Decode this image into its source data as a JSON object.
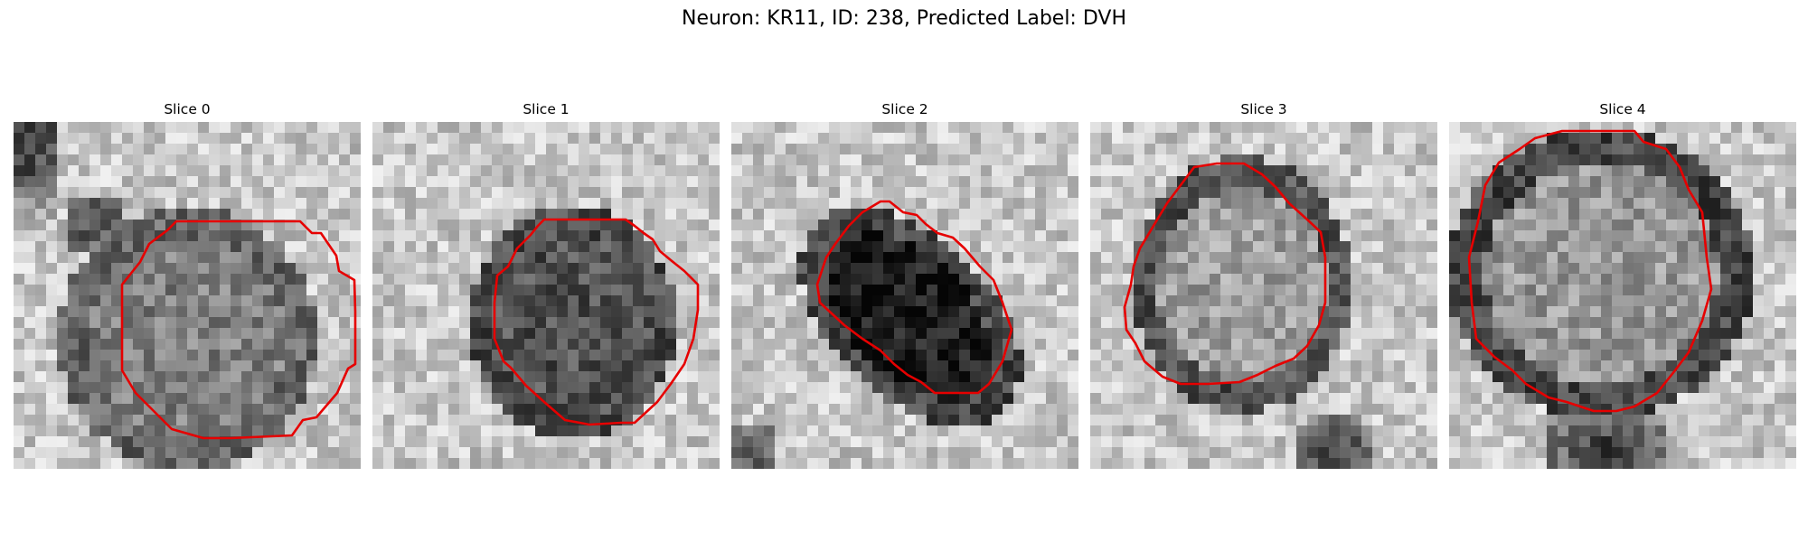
{
  "figure": {
    "title": "Neuron: KR11, ID: 238, Predicted Label: DVH"
  },
  "colors": {
    "contour": "#e60000",
    "background": "#ffffff"
  },
  "panels": [
    {
      "title": "Slice 0"
    },
    {
      "title": "Slice 1"
    },
    {
      "title": "Slice 2"
    },
    {
      "title": "Slice 3"
    },
    {
      "title": "Slice 4"
    }
  ]
}
